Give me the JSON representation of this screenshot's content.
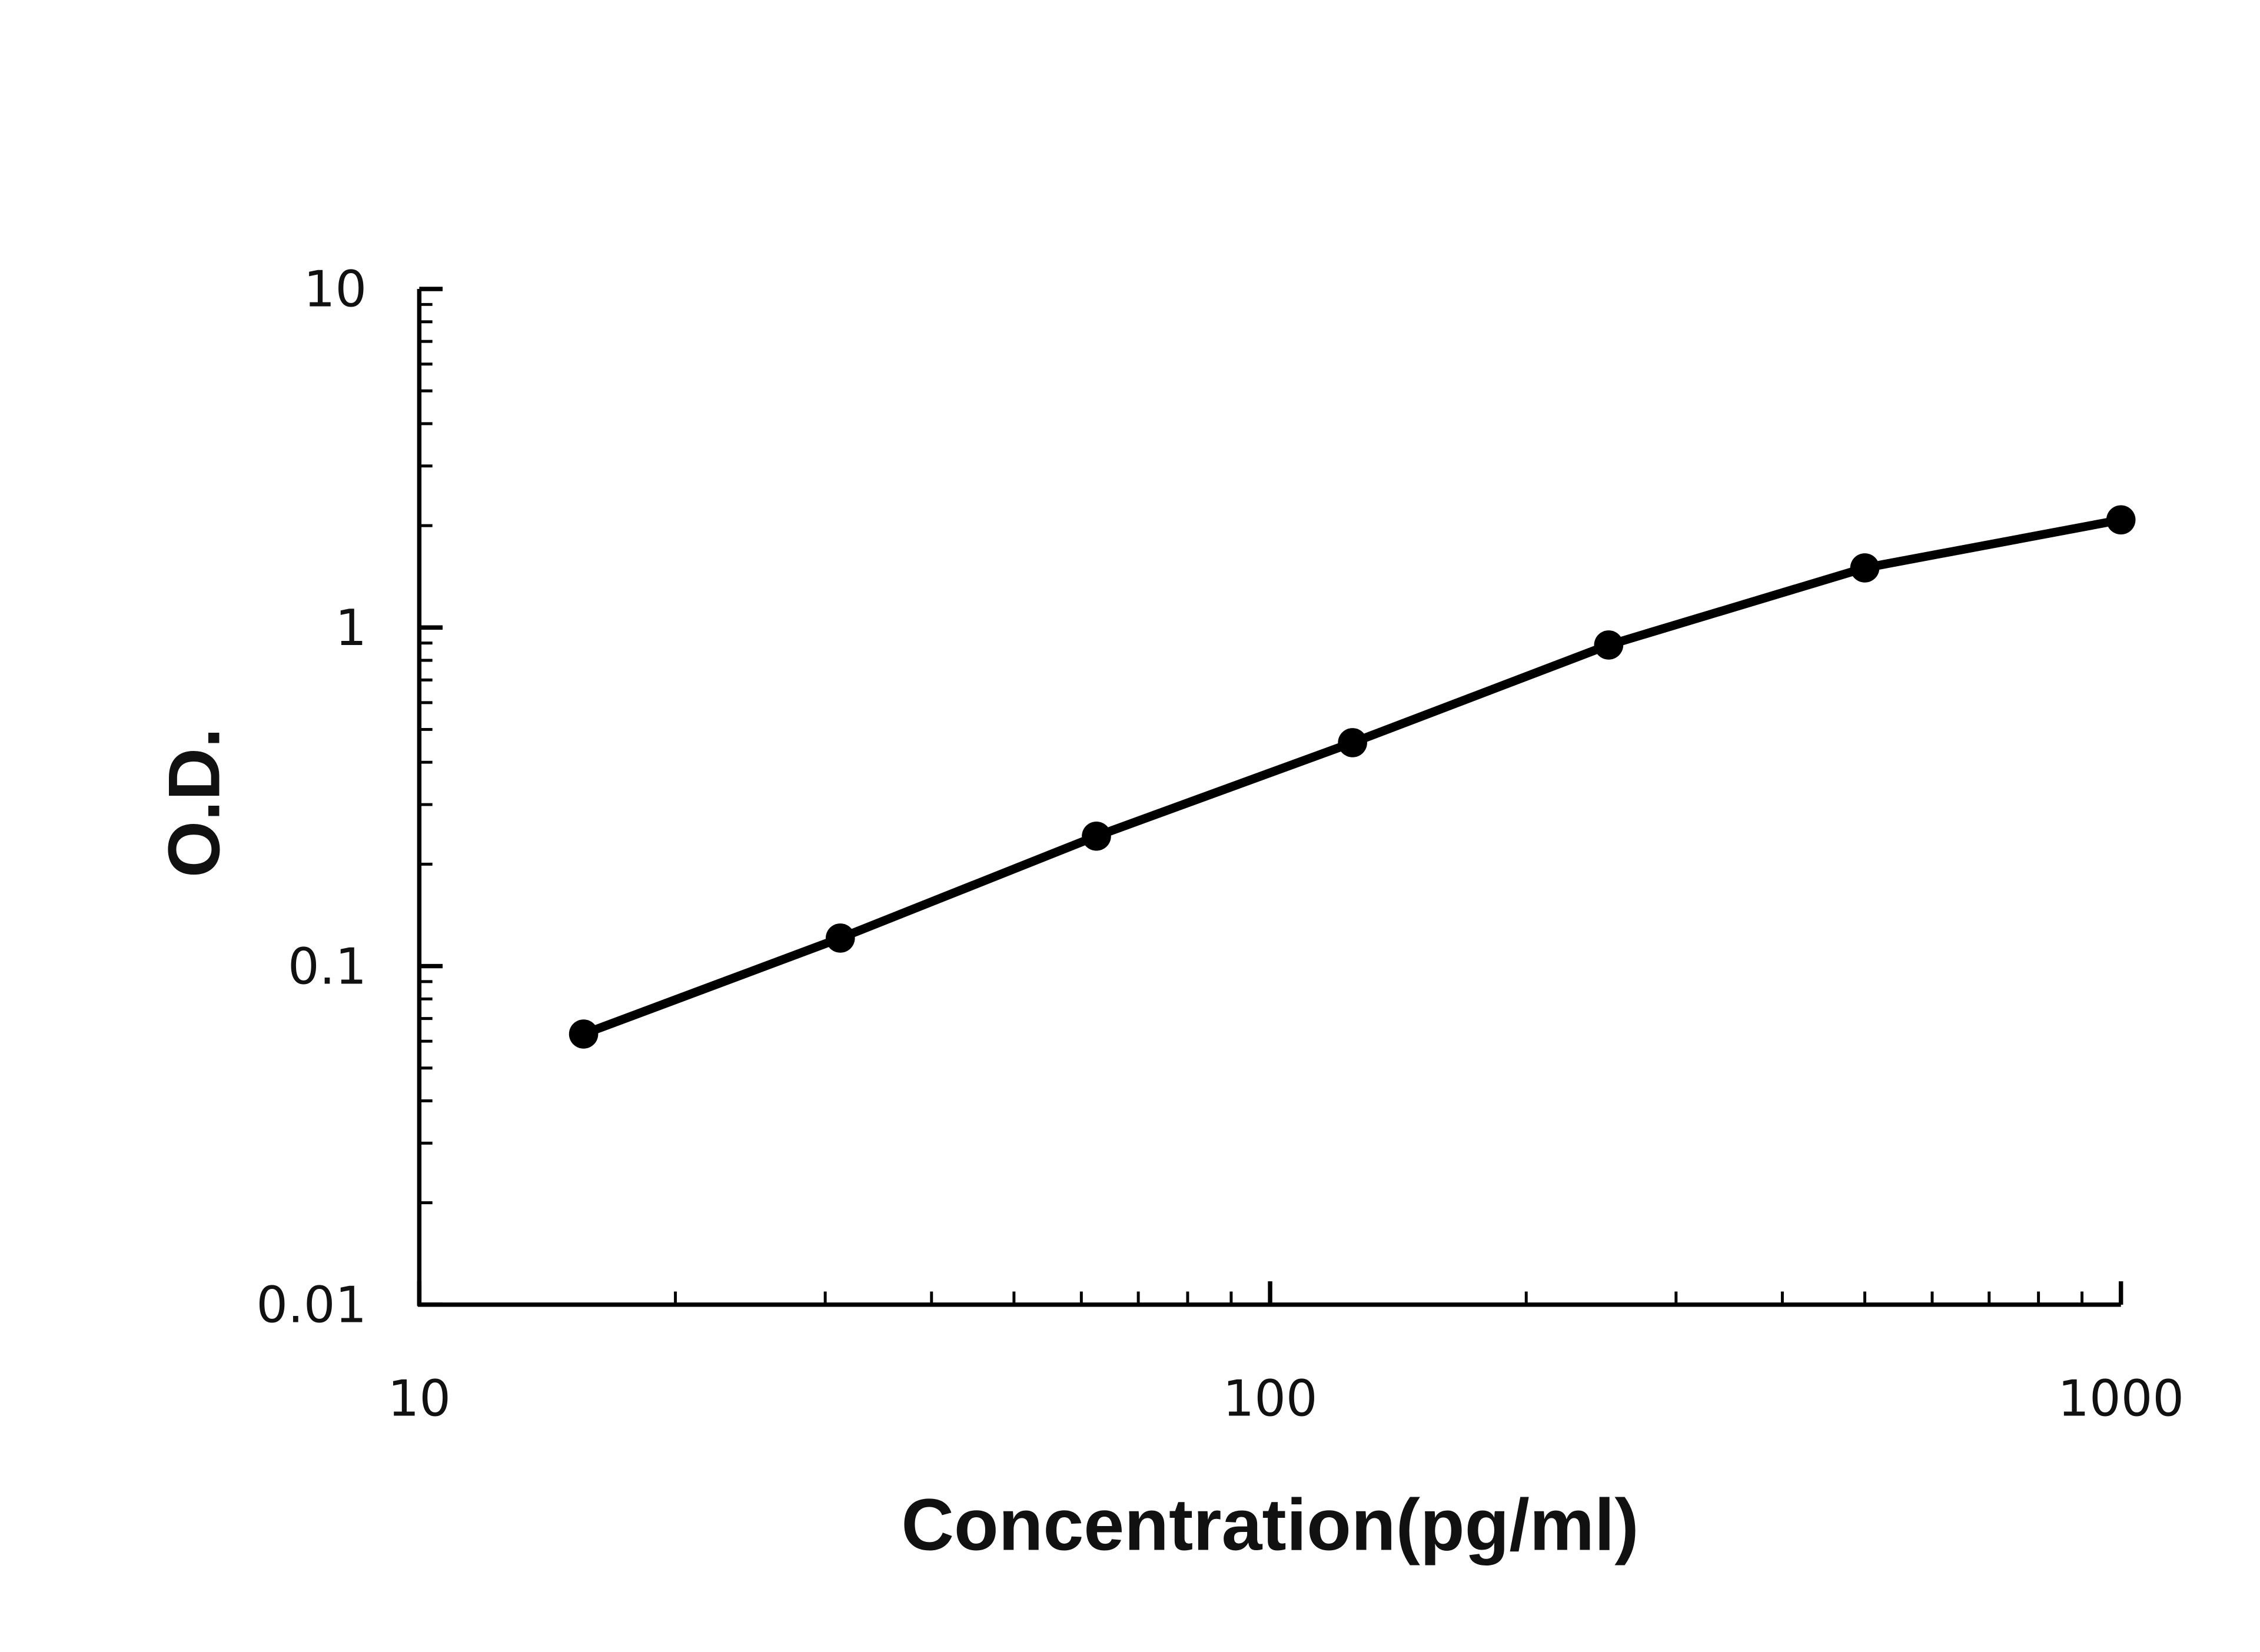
{
  "chart_data": {
    "type": "line",
    "x_label": "Concentration(pg/ml)",
    "y_label": "O.D.",
    "x": [
      15.6,
      31.25,
      62.5,
      125,
      250,
      500,
      1000
    ],
    "series": [
      {
        "color": "#000000",
        "values": [
          0.063,
          0.121,
          0.242,
          0.457,
          0.888,
          1.5,
          2.08
        ]
      }
    ],
    "xlim": [
      10,
      1000
    ],
    "ylim": [
      0.01,
      10
    ],
    "xticks": [
      10,
      100,
      1000
    ],
    "yticks": [
      0.01,
      0.1,
      1,
      10
    ],
    "xscale": "log",
    "yscale": "log",
    "grid": false,
    "markers": true
  }
}
